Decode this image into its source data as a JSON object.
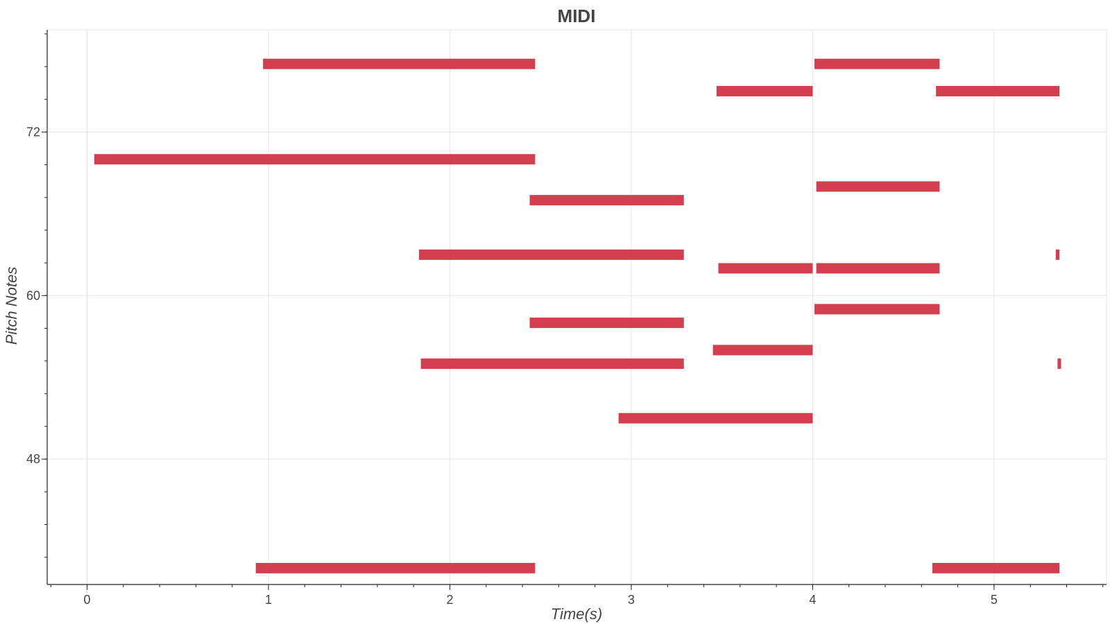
{
  "chart_data": {
    "type": "bar",
    "subtype": "piano-roll",
    "title": "MIDI",
    "xlabel": "Time(s)",
    "ylabel": "Pitch Notes",
    "xlim": [
      -0.22,
      5.62
    ],
    "ylim": [
      38.8,
      79.5
    ],
    "x_ticks": [
      0,
      1,
      2,
      3,
      4,
      5
    ],
    "x_tick_labels": [
      "0",
      "1",
      "2",
      "3",
      "4",
      "5"
    ],
    "x_minor_step": 0.2,
    "y_ticks": [
      48,
      60,
      72
    ],
    "y_tick_labels": [
      "48",
      "60",
      "72"
    ],
    "y_minor_step": 2.4,
    "grid": true,
    "legend": "none",
    "color": "#d43f4f",
    "notes": [
      {
        "start": 0.97,
        "end": 2.47,
        "pitch": 77
      },
      {
        "start": 4.01,
        "end": 4.7,
        "pitch": 77
      },
      {
        "start": 3.47,
        "end": 4.0,
        "pitch": 75
      },
      {
        "start": 4.68,
        "end": 5.36,
        "pitch": 75
      },
      {
        "start": 0.04,
        "end": 2.47,
        "pitch": 70
      },
      {
        "start": 4.02,
        "end": 4.7,
        "pitch": 68
      },
      {
        "start": 2.44,
        "end": 3.29,
        "pitch": 67
      },
      {
        "start": 1.83,
        "end": 3.29,
        "pitch": 63
      },
      {
        "start": 5.34,
        "end": 5.36,
        "pitch": 63
      },
      {
        "start": 3.48,
        "end": 4.0,
        "pitch": 62
      },
      {
        "start": 4.02,
        "end": 4.7,
        "pitch": 62
      },
      {
        "start": 4.01,
        "end": 4.7,
        "pitch": 59
      },
      {
        "start": 2.44,
        "end": 3.29,
        "pitch": 58
      },
      {
        "start": 3.45,
        "end": 4.0,
        "pitch": 56
      },
      {
        "start": 1.84,
        "end": 3.29,
        "pitch": 55
      },
      {
        "start": 5.35,
        "end": 5.36,
        "pitch": 55
      },
      {
        "start": 2.93,
        "end": 4.0,
        "pitch": 51
      },
      {
        "start": 0.93,
        "end": 2.47,
        "pitch": 40
      },
      {
        "start": 4.66,
        "end": 5.36,
        "pitch": 40
      }
    ]
  }
}
